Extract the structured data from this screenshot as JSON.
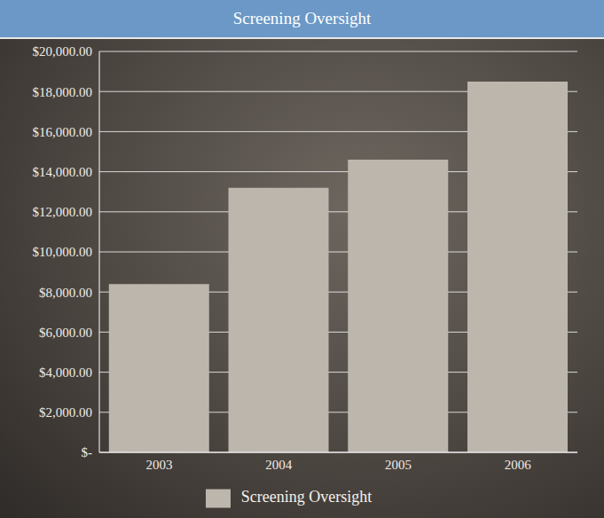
{
  "chart_data": {
    "type": "bar",
    "title": "Screening Oversight",
    "categories": [
      "2003",
      "2004",
      "2005",
      "2006"
    ],
    "series": [
      {
        "name": "Screening Oversight",
        "color": "#bdb6ad",
        "values": [
          8400,
          13200,
          14600,
          18500
        ]
      }
    ],
    "ylim": [
      0,
      20000
    ],
    "yticks": [
      {
        "value": 0,
        "label": "$-"
      },
      {
        "value": 2000,
        "label": "$2,000.00"
      },
      {
        "value": 4000,
        "label": "$4,000.00"
      },
      {
        "value": 6000,
        "label": "$6,000.00"
      },
      {
        "value": 8000,
        "label": "$8,000.00"
      },
      {
        "value": 10000,
        "label": "$10,000.00"
      },
      {
        "value": 12000,
        "label": "$12,000.00"
      },
      {
        "value": 14000,
        "label": "$14,000.00"
      },
      {
        "value": 16000,
        "label": "$16,000.00"
      },
      {
        "value": 18000,
        "label": "$18,000.00"
      },
      {
        "value": 20000,
        "label": "$20,000.00"
      }
    ],
    "grid": true,
    "legend": "bottom"
  }
}
